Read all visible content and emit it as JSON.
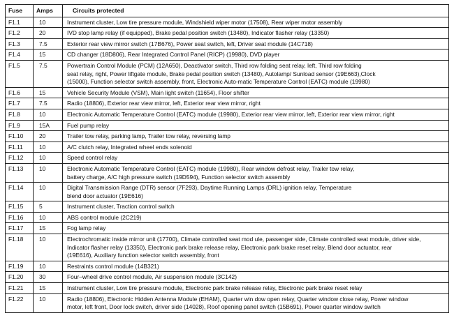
{
  "headers": {
    "fuse": "Fuse",
    "amps": "Amps",
    "circuits": "Circuits protected"
  },
  "rows": [
    {
      "fuse": "F1.1",
      "amps": "10",
      "circuits": [
        "Instrument cluster, Low tire pressure module, Windshield wiper motor  (17508), Rear wiper motor assembly"
      ]
    },
    {
      "fuse": "F1.2",
      "amps": "20",
      "circuits": [
        "IVD stop lamp relay (if equipped), Brake pedal position switch (13480),  Indicator flasher relay (13350)"
      ]
    },
    {
      "fuse": "F1.3",
      "amps": "7.5",
      "circuits": [
        "Exterior rear view mirror switch (17B676), Power seat switch, left, Driver  seat module (14C718)"
      ]
    },
    {
      "fuse": "F1.4",
      "amps": "15",
      "circuits": [
        "CD changer (18D806), Rear Integrated Control Panel (RICP) (19980),  DVD player"
      ]
    },
    {
      "fuse": "F1.5",
      "amps": "7.5",
      "circuits": [
        "Powertrain Control Module (PCM) (12A650), Deactivator switch, Third row  folding seat relay, left, Third row folding",
        "seat relay, right, Power liftgate  module, Brake pedal position switch (13480), Autolamp/ Sunload sensor  (19E663),Clock",
        "(15000), Function selector switch assembly, front,  Electronic Auto-matic Temperature Control (EATC) module (19980)"
      ]
    },
    {
      "fuse": "F1.6",
      "amps": "15",
      "circuits": [
        "Vehicle Security Module (VSM), Main light switch (11654), Floor shifter"
      ]
    },
    {
      "fuse": "F1.7",
      "amps": "7.5",
      "circuits": [
        "Radio (18806), Exterior rear view mirror, left, Exterior rear view mirror, right"
      ]
    },
    {
      "fuse": "F1.8",
      "amps": "10",
      "circuits": [
        "Electronic Automatic Temperature Control (EATC) module (19980), Exterior rear view mirror, left, Exterior rear view mirror, right"
      ]
    },
    {
      "fuse": "F1.9",
      "amps": "15A",
      "circuits": [
        "Fuel pump relay"
      ]
    },
    {
      "fuse": "F1.10",
      "amps": "20",
      "circuits": [
        "Trailer tow relay, parking lamp, Trailer tow relay, reversing lamp"
      ]
    },
    {
      "fuse": "F1.11",
      "amps": "10",
      "circuits": [
        "A/C clutch relay, Integrated wheel ends solenoid"
      ]
    },
    {
      "fuse": "F1.12",
      "amps": "10",
      "circuits": [
        "Speed control relay"
      ]
    },
    {
      "fuse": "F1.13",
      "amps": "10",
      "circuits": [
        "Electronic Automatic Temperature Control (EATC) module (19980), Rear  window defrost relay, Trailer tow relay,",
        "battery charge, A/C high pressure  switch (19D594), Function selector switch assembly"
      ]
    },
    {
      "fuse": "F1.14",
      "amps": "10",
      "circuits": [
        "Digital Transmission Range (DTR) sensor (7F293), Daytime Running  Lamps (DRL) ignition relay, Temperature",
        "blend door actuator  (19E616)"
      ]
    },
    {
      "fuse": "F1.15",
      "amps": "5",
      "circuits": [
        "Instrument cluster, Traction control switch"
      ]
    },
    {
      "fuse": "F1.16",
      "amps": "10",
      "circuits": [
        "ABS control module (2C219)"
      ]
    },
    {
      "fuse": "F1.17",
      "amps": "15",
      "circuits": [
        "Fog lamp relay"
      ]
    },
    {
      "fuse": "F1.18",
      "amps": "10",
      "circuits": [
        "Electrochromatic inside mirror unit (17700), Climate controlled seat mod ule, passenger side, Climate controlled seat  module, driver side,",
        "Indicator  flasher relay (13350), Electronic park brake release relay, Electronic park  brake reset relay, Blend door actuator, rear",
        "(19E616), Auxiliary function  selector switch assembly, front"
      ]
    },
    {
      "fuse": "F1.19",
      "amps": "10",
      "circuits": [
        "Restraints control module (14B321)"
      ]
    },
    {
      "fuse": "F1.20",
      "amps": "30",
      "circuits": [
        "Four–wheel drive control module, Air suspension module (3C142)"
      ]
    },
    {
      "fuse": "F1.21",
      "amps": "15",
      "circuits": [
        "Instrument cluster, Low tire pressure module, Electronic park brake release relay, Electronic park brake reset relay"
      ]
    },
    {
      "fuse": "F1.22",
      "amps": "10",
      "circuits": [
        "Radio (18806), Electronic Hidden Antenna Module (EHAM), Quarter win dow open relay, Quarter window close relay, Power window",
        "motor, left  front, Door lock switch, driver side (14028), Roof opening panel switch  (15B691), Power quarter window switch"
      ]
    }
  ]
}
